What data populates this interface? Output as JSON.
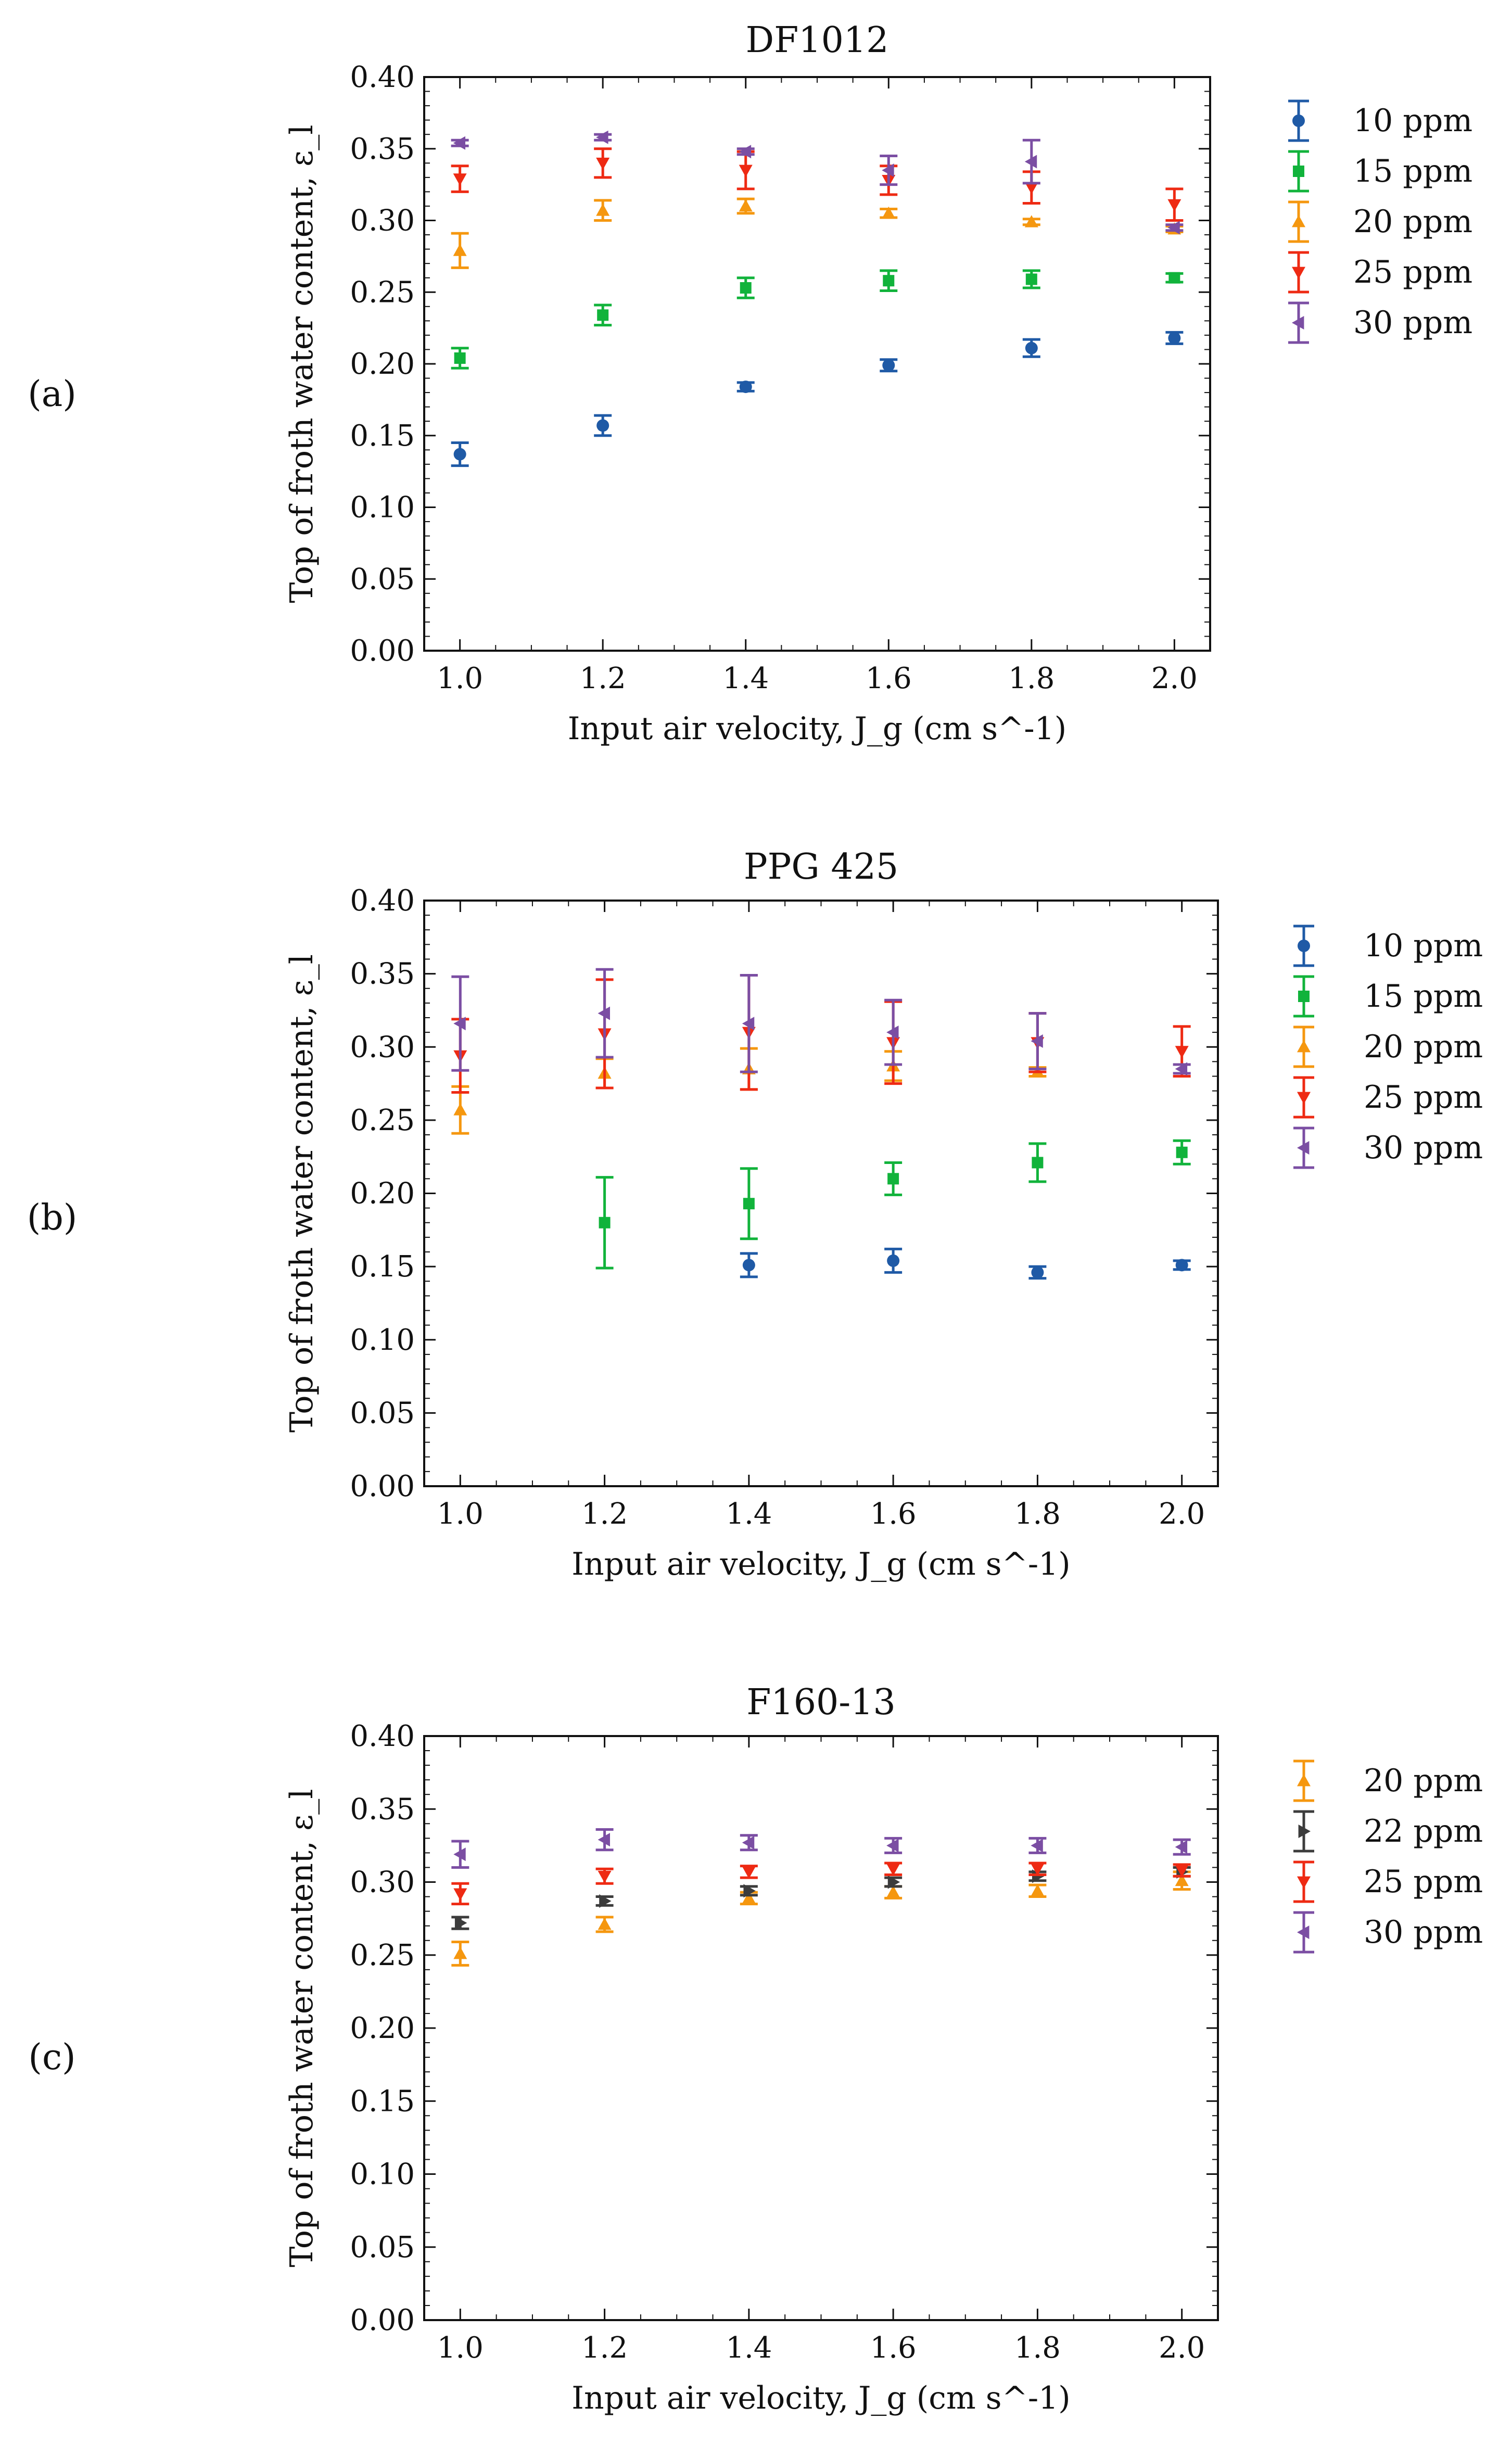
{
  "chart_data": [
    {
      "type": "scatter",
      "panel_label": "(a)",
      "title": "DF1012",
      "xlabel": "Input air velocity, J_g (cm s^-1)",
      "ylabel": "Top of froth water content, ε_l",
      "xlim": [
        0.95,
        2.05
      ],
      "ylim": [
        0.0,
        0.4
      ],
      "x_ticks": [
        "1.0",
        "1.2",
        "1.4",
        "1.6",
        "1.8",
        "2.0"
      ],
      "y_ticks": [
        "0.00",
        "0.05",
        "0.10",
        "0.15",
        "0.20",
        "0.25",
        "0.30",
        "0.35",
        "0.40"
      ],
      "legend_position": "outside-right",
      "series": [
        {
          "name": "10 ppm",
          "color": "#1f5aa6",
          "marker": "circle",
          "points": [
            {
              "x": 1.0,
              "y": 0.137,
              "err": 0.008
            },
            {
              "x": 1.2,
              "y": 0.157,
              "err": 0.007
            },
            {
              "x": 1.4,
              "y": 0.184,
              "err": 0.003
            },
            {
              "x": 1.6,
              "y": 0.199,
              "err": 0.004
            },
            {
              "x": 1.8,
              "y": 0.211,
              "err": 0.006
            },
            {
              "x": 2.0,
              "y": 0.218,
              "err": 0.004
            }
          ]
        },
        {
          "name": "15 ppm",
          "color": "#11b33b",
          "marker": "square",
          "points": [
            {
              "x": 1.0,
              "y": 0.204,
              "err": 0.007
            },
            {
              "x": 1.2,
              "y": 0.234,
              "err": 0.007
            },
            {
              "x": 1.4,
              "y": 0.253,
              "err": 0.007
            },
            {
              "x": 1.6,
              "y": 0.258,
              "err": 0.007
            },
            {
              "x": 1.8,
              "y": 0.259,
              "err": 0.006
            },
            {
              "x": 2.0,
              "y": 0.26,
              "err": 0.003
            }
          ]
        },
        {
          "name": "20 ppm",
          "color": "#f5970f",
          "marker": "triangle-up",
          "points": [
            {
              "x": 1.0,
              "y": 0.279,
              "err": 0.012
            },
            {
              "x": 1.2,
              "y": 0.307,
              "err": 0.007
            },
            {
              "x": 1.4,
              "y": 0.31,
              "err": 0.005
            },
            {
              "x": 1.6,
              "y": 0.305,
              "err": 0.003
            },
            {
              "x": 1.8,
              "y": 0.299,
              "err": 0.002
            },
            {
              "x": 2.0,
              "y": 0.294,
              "err": 0.002
            }
          ]
        },
        {
          "name": "25 ppm",
          "color": "#ee2a13",
          "marker": "triangle-down",
          "points": [
            {
              "x": 1.0,
              "y": 0.329,
              "err": 0.009
            },
            {
              "x": 1.2,
              "y": 0.34,
              "err": 0.01
            },
            {
              "x": 1.4,
              "y": 0.335,
              "err": 0.013
            },
            {
              "x": 1.6,
              "y": 0.328,
              "err": 0.01
            },
            {
              "x": 1.8,
              "y": 0.323,
              "err": 0.011
            },
            {
              "x": 2.0,
              "y": 0.311,
              "err": 0.011
            }
          ]
        },
        {
          "name": "30 ppm",
          "color": "#7b4ea3",
          "marker": "triangle-left",
          "points": [
            {
              "x": 1.0,
              "y": 0.354,
              "err": 0.002
            },
            {
              "x": 1.2,
              "y": 0.358,
              "err": 0.002
            },
            {
              "x": 1.4,
              "y": 0.348,
              "err": 0.002
            },
            {
              "x": 1.6,
              "y": 0.335,
              "err": 0.01
            },
            {
              "x": 1.8,
              "y": 0.341,
              "err": 0.015
            },
            {
              "x": 2.0,
              "y": 0.295,
              "err": 0.002
            }
          ]
        }
      ]
    },
    {
      "type": "scatter",
      "panel_label": "(b)",
      "title": "PPG 425",
      "xlabel": "Input air velocity, J_g (cm s^-1)",
      "ylabel": "Top of froth water content, ε_l",
      "xlim": [
        0.95,
        2.05
      ],
      "ylim": [
        0.0,
        0.4
      ],
      "x_ticks": [
        "1.0",
        "1.2",
        "1.4",
        "1.6",
        "1.8",
        "2.0"
      ],
      "y_ticks": [
        "0.00",
        "0.05",
        "0.10",
        "0.15",
        "0.20",
        "0.25",
        "0.30",
        "0.35",
        "0.40"
      ],
      "legend_position": "outside-right",
      "series": [
        {
          "name": "10 ppm",
          "color": "#1f5aa6",
          "marker": "circle",
          "points": [
            {
              "x": 1.4,
              "y": 0.151,
              "err": 0.008
            },
            {
              "x": 1.6,
              "y": 0.154,
              "err": 0.008
            },
            {
              "x": 1.8,
              "y": 0.146,
              "err": 0.004
            },
            {
              "x": 2.0,
              "y": 0.151,
              "err": 0.003
            }
          ]
        },
        {
          "name": "15 ppm",
          "color": "#11b33b",
          "marker": "square",
          "points": [
            {
              "x": 1.2,
              "y": 0.18,
              "err": 0.031
            },
            {
              "x": 1.4,
              "y": 0.193,
              "err": 0.024
            },
            {
              "x": 1.6,
              "y": 0.21,
              "err": 0.011
            },
            {
              "x": 1.8,
              "y": 0.221,
              "err": 0.013
            },
            {
              "x": 2.0,
              "y": 0.228,
              "err": 0.008
            }
          ]
        },
        {
          "name": "20 ppm",
          "color": "#f5970f",
          "marker": "triangle-up",
          "points": [
            {
              "x": 1.0,
              "y": 0.257,
              "err": 0.016
            },
            {
              "x": 1.2,
              "y": 0.282,
              "err": 0.01
            },
            {
              "x": 1.4,
              "y": 0.285,
              "err": 0.014
            },
            {
              "x": 1.6,
              "y": 0.287,
              "err": 0.01
            },
            {
              "x": 1.8,
              "y": 0.283,
              "err": 0.003
            }
          ]
        },
        {
          "name": "25 ppm",
          "color": "#ee2a13",
          "marker": "triangle-down",
          "points": [
            {
              "x": 1.0,
              "y": 0.294,
              "err": 0.025
            },
            {
              "x": 1.2,
              "y": 0.309,
              "err": 0.037
            },
            {
              "x": 1.4,
              "y": 0.31,
              "err": 0.039
            },
            {
              "x": 1.6,
              "y": 0.303,
              "err": 0.028
            },
            {
              "x": 1.8,
              "y": 0.303,
              "err": 0.02
            },
            {
              "x": 2.0,
              "y": 0.297,
              "err": 0.017
            }
          ]
        },
        {
          "name": "30 ppm",
          "color": "#7b4ea3",
          "marker": "triangle-left",
          "points": [
            {
              "x": 1.0,
              "y": 0.316,
              "err": 0.032
            },
            {
              "x": 1.2,
              "y": 0.323,
              "err": 0.03
            },
            {
              "x": 1.4,
              "y": 0.316,
              "err": 0.033
            },
            {
              "x": 1.6,
              "y": 0.31,
              "err": 0.022
            },
            {
              "x": 1.8,
              "y": 0.304,
              "err": 0.019
            },
            {
              "x": 2.0,
              "y": 0.285,
              "err": 0.003
            }
          ]
        }
      ]
    },
    {
      "type": "scatter",
      "panel_label": "(c)",
      "title": "F160-13",
      "xlabel": "Input air velocity, J_g (cm s^-1)",
      "ylabel": "Top of froth water content, ε_l",
      "xlim": [
        0.95,
        2.05
      ],
      "ylim": [
        0.0,
        0.4
      ],
      "x_ticks": [
        "1.0",
        "1.2",
        "1.4",
        "1.6",
        "1.8",
        "2.0"
      ],
      "y_ticks": [
        "0.00",
        "0.05",
        "0.10",
        "0.15",
        "0.20",
        "0.25",
        "0.30",
        "0.35",
        "0.40"
      ],
      "legend_position": "outside-right",
      "series": [
        {
          "name": "20 ppm",
          "color": "#f5970f",
          "marker": "triangle-up",
          "points": [
            {
              "x": 1.0,
              "y": 0.251,
              "err": 0.008
            },
            {
              "x": 1.2,
              "y": 0.271,
              "err": 0.005
            },
            {
              "x": 1.4,
              "y": 0.289,
              "err": 0.004
            },
            {
              "x": 1.6,
              "y": 0.293,
              "err": 0.004
            },
            {
              "x": 1.8,
              "y": 0.294,
              "err": 0.004
            },
            {
              "x": 2.0,
              "y": 0.301,
              "err": 0.006
            }
          ]
        },
        {
          "name": "22 ppm",
          "color": "#3c3c3c",
          "marker": "triangle-right",
          "points": [
            {
              "x": 1.0,
              "y": 0.272,
              "err": 0.004
            },
            {
              "x": 1.2,
              "y": 0.287,
              "err": 0.003
            },
            {
              "x": 1.4,
              "y": 0.294,
              "err": 0.003
            },
            {
              "x": 1.6,
              "y": 0.3,
              "err": 0.003
            },
            {
              "x": 1.8,
              "y": 0.304,
              "err": 0.003
            },
            {
              "x": 2.0,
              "y": 0.307,
              "err": 0.003
            }
          ]
        },
        {
          "name": "25 ppm",
          "color": "#ee2a13",
          "marker": "triangle-down",
          "points": [
            {
              "x": 1.0,
              "y": 0.292,
              "err": 0.007
            },
            {
              "x": 1.2,
              "y": 0.304,
              "err": 0.005
            },
            {
              "x": 1.4,
              "y": 0.307,
              "err": 0.004
            },
            {
              "x": 1.6,
              "y": 0.309,
              "err": 0.004
            },
            {
              "x": 1.8,
              "y": 0.309,
              "err": 0.004
            },
            {
              "x": 2.0,
              "y": 0.308,
              "err": 0.004
            }
          ]
        },
        {
          "name": "30 ppm",
          "color": "#7b4ea3",
          "marker": "triangle-left",
          "points": [
            {
              "x": 1.0,
              "y": 0.319,
              "err": 0.009
            },
            {
              "x": 1.2,
              "y": 0.329,
              "err": 0.007
            },
            {
              "x": 1.4,
              "y": 0.327,
              "err": 0.005
            },
            {
              "x": 1.6,
              "y": 0.325,
              "err": 0.005
            },
            {
              "x": 1.8,
              "y": 0.325,
              "err": 0.005
            },
            {
              "x": 2.0,
              "y": 0.324,
              "err": 0.005
            }
          ]
        }
      ]
    }
  ]
}
